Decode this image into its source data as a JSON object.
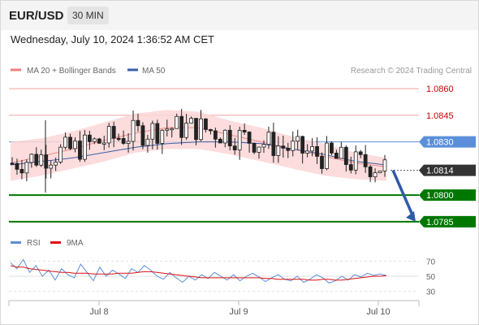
{
  "header": {
    "symbol": "EUR/USD",
    "timeframe": "30 MIN"
  },
  "datetime": "Wednesday, July 10, 2024 1:36:52 AM CET",
  "credit": "Research © 2024 Trading Central",
  "colors": {
    "resistance": "#cc0000",
    "pivot": "#5b8fd9",
    "support": "#007700",
    "price": "#333333",
    "ma50": "#3a5ea8",
    "rsi": "#5b8fd9",
    "rsi_ma": "#dd1111"
  },
  "chart_data": [
    {
      "type": "candlestick",
      "legend": [
        {
          "name": "MA 20 + Bollinger Bands",
          "color": "#f08080"
        },
        {
          "name": "MA 50",
          "color": "#3a5ea8"
        }
      ],
      "x_tick_labels": [
        "Jul 8",
        "Jul 9",
        "Jul 10"
      ],
      "ylim": [
        1.0779,
        1.0866
      ],
      "levels": [
        {
          "label": "1.0860",
          "value": 1.086,
          "kind": "resistance"
        },
        {
          "label": "1.0845",
          "value": 1.0845,
          "kind": "resistance"
        },
        {
          "label": "1.0830",
          "value": 1.083,
          "kind": "pivot"
        },
        {
          "label": "1.0814",
          "value": 1.0814,
          "kind": "price"
        },
        {
          "label": "1.0800",
          "value": 1.08,
          "kind": "support"
        },
        {
          "label": "1.0785",
          "value": 1.0785,
          "kind": "support"
        }
      ],
      "ma20": [
        1.0818,
        1.0822,
        1.0826,
        1.0831,
        1.0835,
        1.0838,
        1.0838,
        1.0834,
        1.083,
        1.0826,
        1.0822,
        1.0818,
        1.0816
      ],
      "ma50": [
        1.0817,
        1.0819,
        1.0821,
        1.0824,
        1.0827,
        1.0829,
        1.083,
        1.083,
        1.0829,
        1.0826,
        1.0823,
        1.0819,
        1.0817
      ],
      "bb_upper": [
        1.083,
        1.0832,
        1.0836,
        1.0841,
        1.0846,
        1.0848,
        1.0847,
        1.0842,
        1.0838,
        1.0833,
        1.0829,
        1.0824,
        1.0821
      ],
      "bb_lower": [
        1.0808,
        1.0811,
        1.0815,
        1.0819,
        1.0824,
        1.0826,
        1.0826,
        1.0823,
        1.0819,
        1.0815,
        1.0811,
        1.0809,
        1.0808
      ],
      "forecast": {
        "from": 1.0814,
        "to": 1.0785
      }
    },
    {
      "type": "line",
      "legend": [
        {
          "name": "RSI",
          "color": "#5b8fd9"
        },
        {
          "name": "9MA",
          "color": "#dd1111"
        }
      ],
      "y_tick_labels": [
        "70",
        "50",
        "30"
      ],
      "ylim": [
        20,
        80
      ],
      "rsi": [
        68,
        60,
        72,
        55,
        64,
        50,
        58,
        45,
        60,
        52,
        48,
        66,
        55,
        44,
        62,
        50,
        58,
        53,
        47,
        60,
        55,
        64,
        58,
        50,
        46,
        55,
        48,
        42,
        50,
        45,
        52,
        47,
        55,
        50,
        45,
        52,
        44,
        50,
        54,
        49,
        43,
        48,
        52,
        46,
        44,
        50,
        42,
        46,
        52,
        48,
        41,
        44,
        50,
        45,
        52,
        49,
        54,
        51,
        53,
        51
      ],
      "rsi_ma": [
        64,
        62,
        62,
        60,
        59,
        58,
        57,
        56,
        55,
        55,
        54,
        54,
        54,
        53,
        53,
        53,
        53,
        54,
        54,
        54,
        55,
        56,
        56,
        55,
        54,
        53,
        52,
        51,
        50,
        49,
        48,
        48,
        48,
        48,
        48,
        48,
        48,
        48,
        48,
        48,
        47,
        47,
        46,
        46,
        46,
        46,
        46,
        45,
        45,
        46,
        46,
        45,
        45,
        46,
        47,
        48,
        49,
        50,
        50,
        51
      ]
    }
  ]
}
